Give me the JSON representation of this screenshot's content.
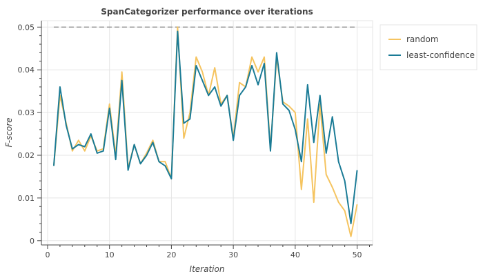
{
  "chart_data": {
    "type": "line",
    "title": "SpanCategorizer performance over iterations",
    "xlabel": "Iteration",
    "ylabel": "F-score",
    "xlim": [
      -1,
      52.5
    ],
    "ylim": [
      -0.001,
      0.0515
    ],
    "x_ticks": [
      0,
      10,
      20,
      30,
      40,
      50
    ],
    "y_ticks": [
      0,
      0.01,
      0.02,
      0.03,
      0.04,
      0.05
    ],
    "x_tick_labels": [
      "0",
      "10",
      "20",
      "30",
      "40",
      "50"
    ],
    "y_tick_labels": [
      "0",
      "0.01",
      "0.02",
      "0.03",
      "0.04",
      "0.05"
    ],
    "grid": true,
    "legend_position": "top-right",
    "reference_line": {
      "y": 0.05,
      "style": "dashed",
      "color": "#888888"
    },
    "x": [
      1,
      2,
      3,
      4,
      5,
      6,
      7,
      8,
      9,
      10,
      11,
      12,
      13,
      14,
      15,
      16,
      17,
      18,
      19,
      20,
      21,
      22,
      23,
      24,
      25,
      26,
      27,
      28,
      29,
      30,
      31,
      32,
      33,
      34,
      35,
      36,
      37,
      38,
      39,
      40,
      41,
      42,
      43,
      44,
      45,
      46,
      47,
      48,
      49,
      50
    ],
    "series": [
      {
        "name": "random",
        "color": "#f5c460",
        "values": [
          0.0175,
          0.034,
          0.0275,
          0.021,
          0.0235,
          0.021,
          0.0245,
          0.021,
          0.0215,
          0.032,
          0.02,
          0.0395,
          0.017,
          0.0225,
          0.018,
          0.0205,
          0.0235,
          0.0185,
          0.0185,
          0.0145,
          0.05,
          0.024,
          0.03,
          0.043,
          0.0395,
          0.034,
          0.0405,
          0.032,
          0.034,
          0.024,
          0.037,
          0.036,
          0.043,
          0.0395,
          0.043,
          0.0215,
          0.043,
          0.0325,
          0.0315,
          0.03,
          0.012,
          0.0285,
          0.009,
          0.032,
          0.0155,
          0.0125,
          0.009,
          0.007,
          0.001,
          0.0085
        ]
      },
      {
        "name": "least-confidence",
        "color": "#1a7b96",
        "values": [
          0.0175,
          0.036,
          0.027,
          0.0215,
          0.0225,
          0.022,
          0.025,
          0.0205,
          0.021,
          0.031,
          0.019,
          0.0375,
          0.0165,
          0.0225,
          0.018,
          0.02,
          0.023,
          0.0185,
          0.0175,
          0.0145,
          0.049,
          0.0275,
          0.0285,
          0.041,
          0.0375,
          0.034,
          0.036,
          0.0315,
          0.034,
          0.0235,
          0.034,
          0.036,
          0.041,
          0.0365,
          0.0415,
          0.021,
          0.044,
          0.032,
          0.0305,
          0.026,
          0.0185,
          0.0365,
          0.023,
          0.034,
          0.0205,
          0.029,
          0.0185,
          0.014,
          0.004,
          0.0165
        ]
      }
    ]
  }
}
